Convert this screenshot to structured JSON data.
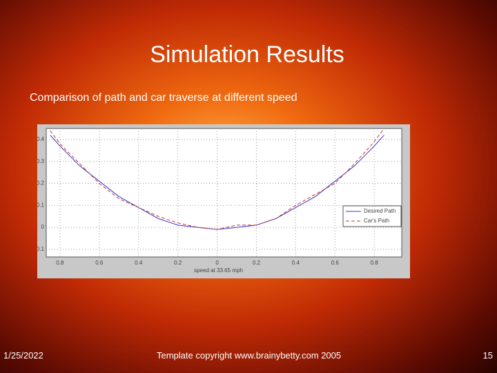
{
  "slide": {
    "title": "Simulation Results",
    "subtitle": "Comparison of path and car traverse at different speed",
    "date": "1/25/2022",
    "copyright": "Template copyright www.brainybetty.com 2005",
    "page": "15"
  },
  "chart_data": {
    "type": "line",
    "xlabel": "speed at 33.65 mph",
    "x": [
      -0.85,
      -0.8,
      -0.7,
      -0.6,
      -0.5,
      -0.4,
      -0.3,
      -0.2,
      -0.1,
      0,
      0.1,
      0.2,
      0.3,
      0.4,
      0.5,
      0.6,
      0.7,
      0.8,
      0.85
    ],
    "series": [
      {
        "name": "Desired Path",
        "color": "#3333cc",
        "dash": false,
        "values": [
          0.42,
          0.37,
          0.28,
          0.21,
          0.14,
          0.09,
          0.04,
          0.01,
          0,
          -0.01,
          0,
          0.01,
          0.04,
          0.09,
          0.14,
          0.21,
          0.28,
          0.37,
          0.42
        ]
      },
      {
        "name": "Car's Path",
        "color": "#cc3333",
        "dash": true,
        "values": [
          0.44,
          0.38,
          0.29,
          0.2,
          0.13,
          0.09,
          0.05,
          0.02,
          0,
          -0.01,
          0.01,
          0.01,
          0.04,
          0.1,
          0.15,
          0.2,
          0.29,
          0.39,
          0.45
        ]
      }
    ],
    "xlim": [
      -0.87,
      0.94
    ],
    "ylim": [
      -0.135,
      0.45
    ],
    "xticks": [
      {
        "value": -0.8,
        "label": "0.8"
      },
      {
        "value": -0.6,
        "label": "0.6"
      },
      {
        "value": -0.4,
        "label": "0.4"
      },
      {
        "value": -0.2,
        "label": "0.2"
      },
      0,
      0.2,
      0.4,
      0.6,
      0.8
    ],
    "yticks": [
      -0.1,
      0,
      0.1,
      0.2,
      0.3,
      0.4
    ],
    "grid": true,
    "legend": "right"
  }
}
